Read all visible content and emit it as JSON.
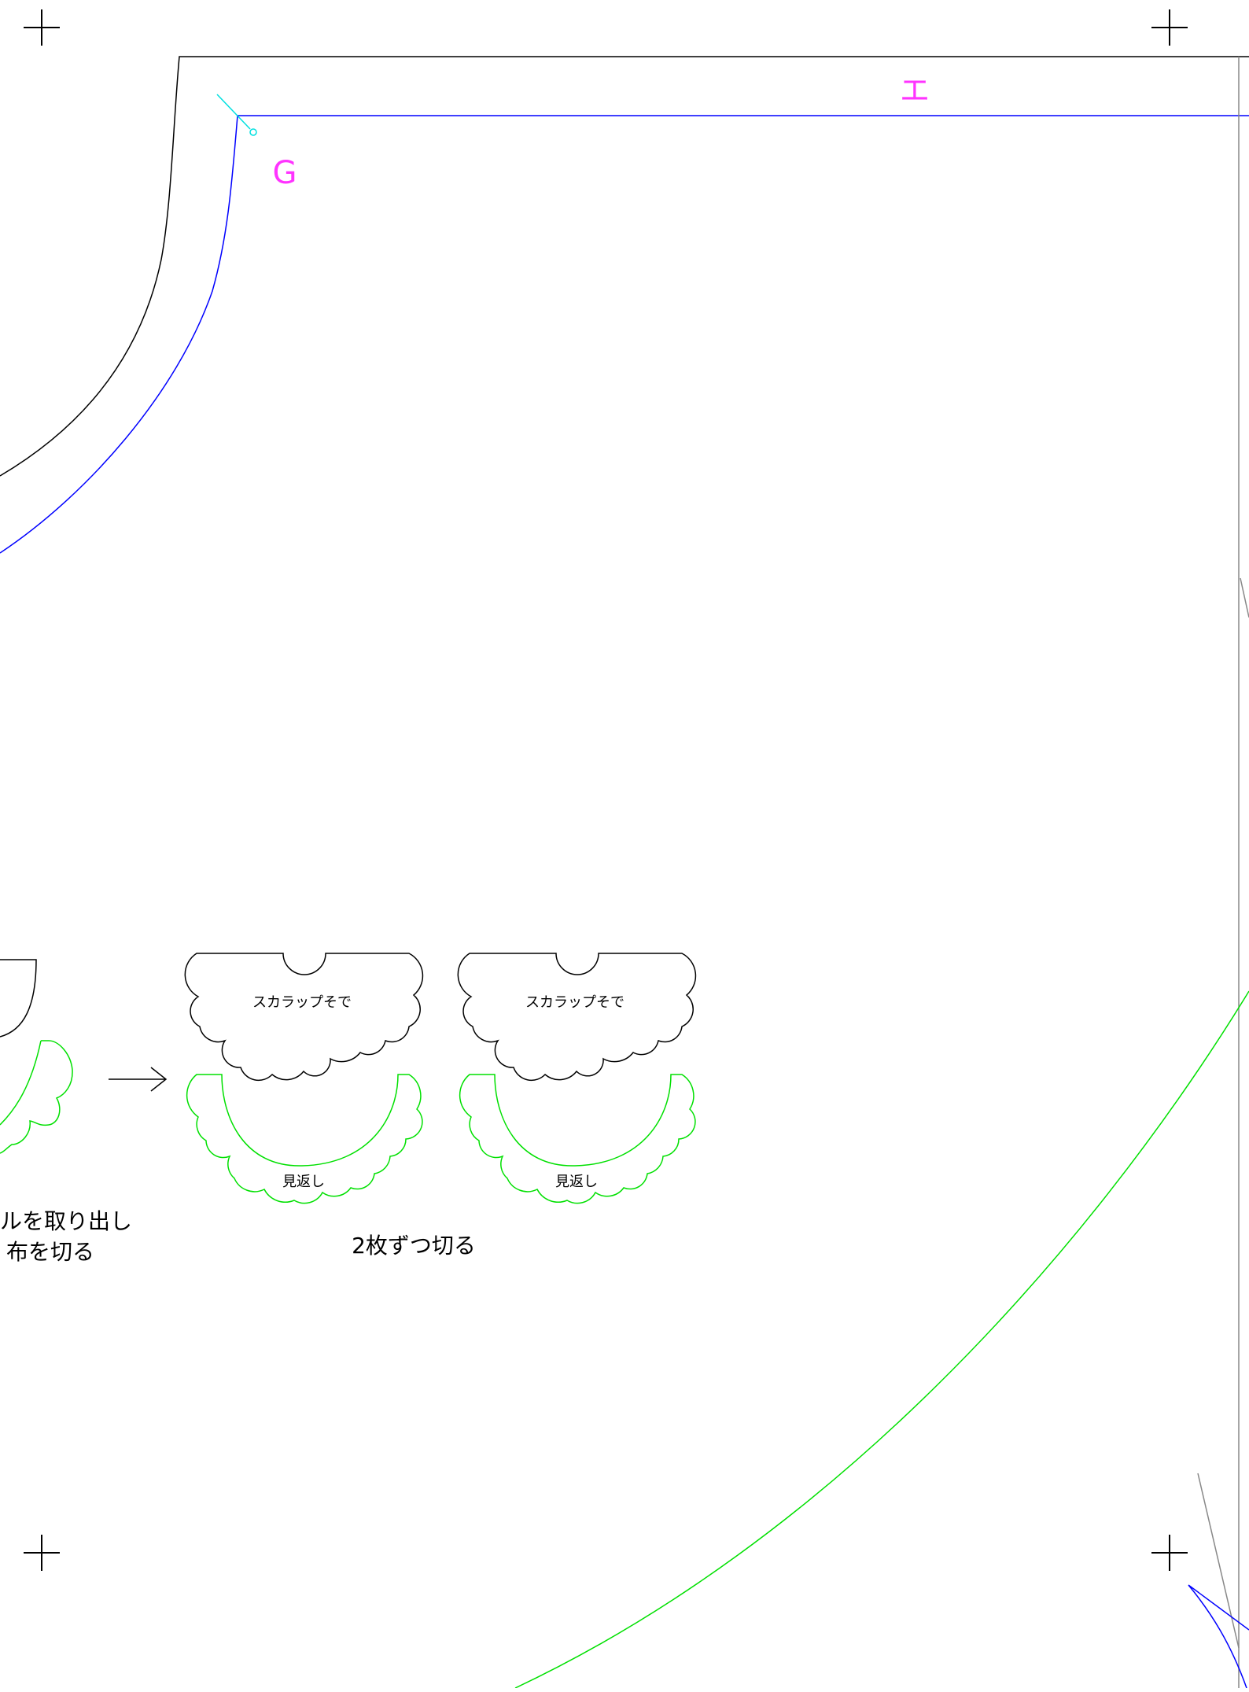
{
  "labels": {
    "point_e": "エ",
    "point_g": "G",
    "piece_sleeve": "スカラップそで",
    "piece_facing": "見返し",
    "instruction_left_line1": "ルを取り出し",
    "instruction_left_line2": "布を切る",
    "instruction_cut": "2枚ずつ切る"
  },
  "colors": {
    "outline": "#000000",
    "seam_line": "#0000ff",
    "facing_line": "#00e000",
    "label_magenta": "#ff33ff",
    "mark_cyan": "#00e0e0",
    "guide_gray": "#888888"
  }
}
